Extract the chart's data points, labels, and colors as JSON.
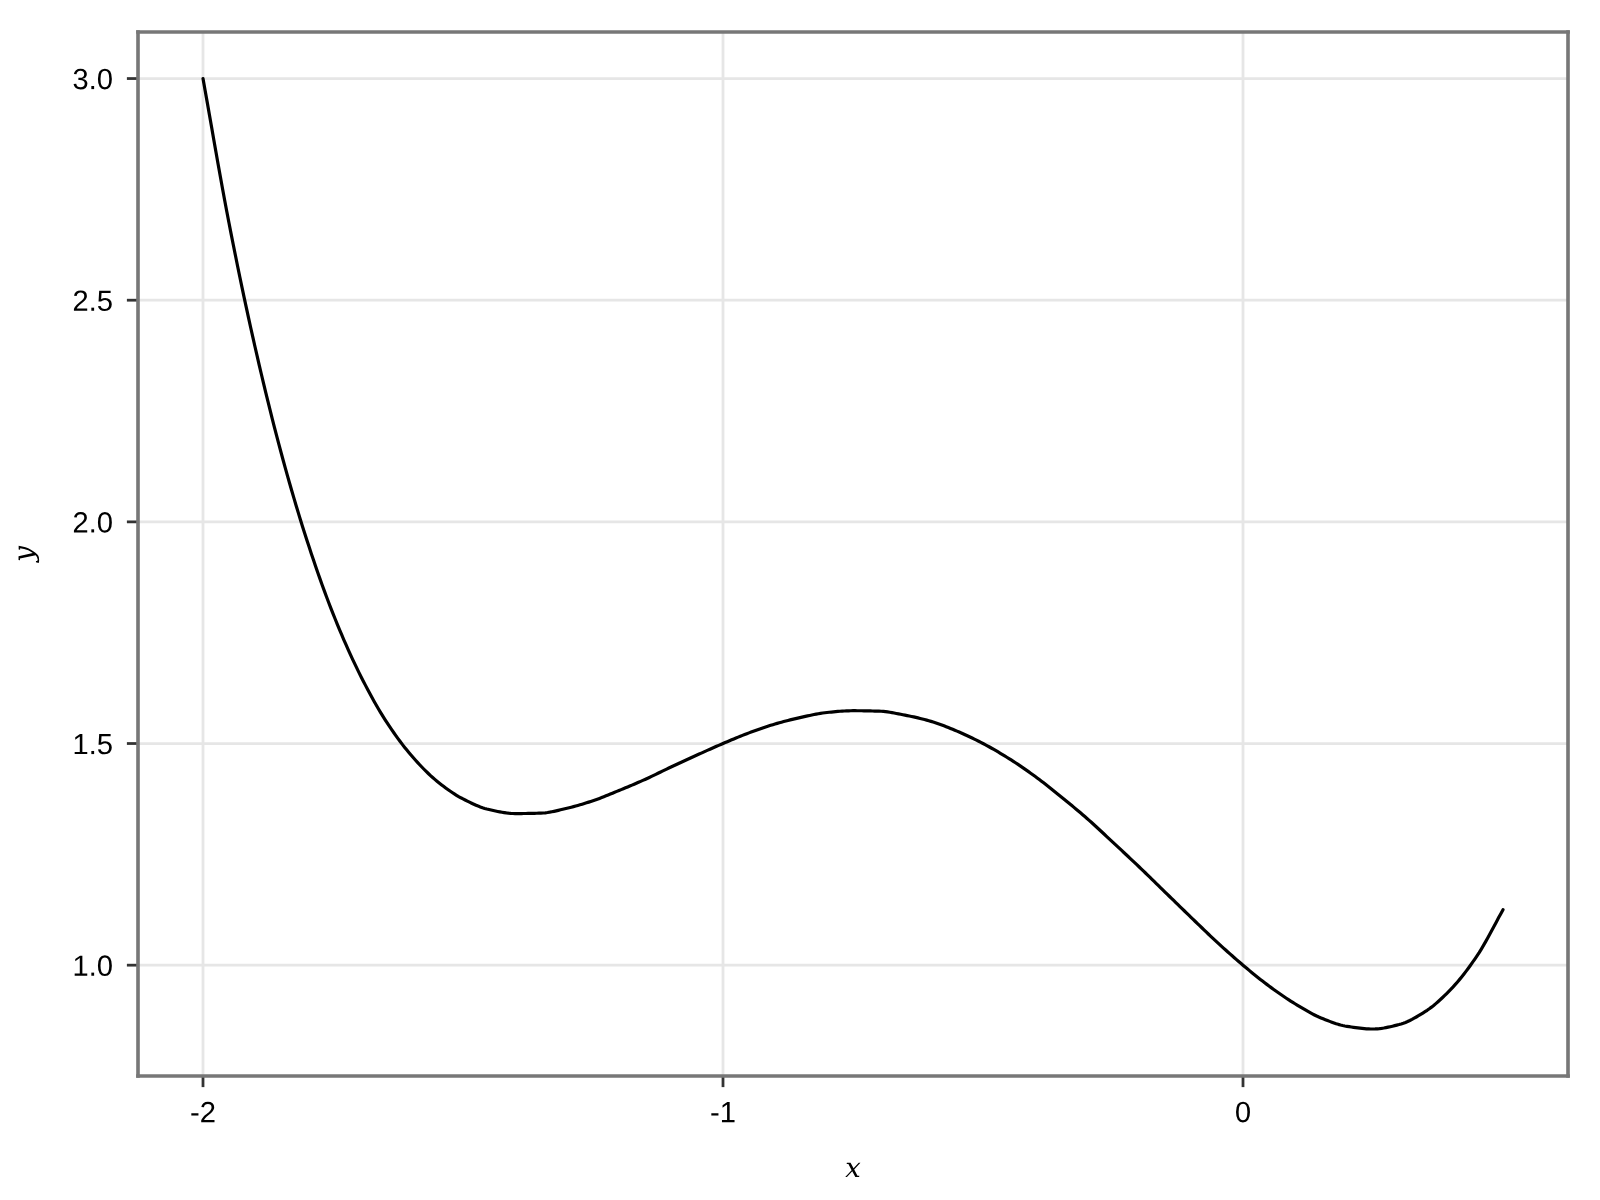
{
  "chart_data": {
    "type": "line",
    "xlabel": "x",
    "ylabel": "y",
    "x": [
      -2,
      -1.95,
      -1.9,
      -1.85,
      -1.8,
      -1.75,
      -1.7,
      -1.65,
      -1.6,
      -1.55,
      -1.5,
      -1.45,
      -1.4,
      -1.35,
      -1.3,
      -1.25,
      -1.2,
      -1.15,
      -1.1,
      -1.05,
      -1,
      -0.95,
      -0.9,
      -0.85,
      -0.8,
      -0.75,
      -0.7,
      -0.65,
      -0.6,
      -0.55,
      -0.5,
      -0.45,
      -0.4,
      -0.35,
      -0.3,
      -0.25,
      -0.2,
      -0.15,
      -0.1,
      -0.05,
      0,
      0.05,
      0.1,
      0.15,
      0.2,
      0.25,
      0.3,
      0.35,
      0.4,
      0.45,
      0.5
    ],
    "series": [
      {
        "color": "#000000",
        "values": [
          3.0,
          2.674,
          2.395,
          2.157,
          1.958,
          1.793,
          1.66,
          1.554,
          1.474,
          1.415,
          1.375,
          1.351,
          1.342,
          1.343,
          1.354,
          1.371,
          1.394,
          1.419,
          1.447,
          1.474,
          1.5,
          1.524,
          1.544,
          1.559,
          1.57,
          1.574,
          1.573,
          1.564,
          1.55,
          1.528,
          1.5,
          1.466,
          1.426,
          1.38,
          1.331,
          1.277,
          1.222,
          1.165,
          1.108,
          1.052,
          1.0,
          0.953,
          0.913,
          0.881,
          0.862,
          0.856,
          0.866,
          0.895,
          0.946,
          1.021,
          1.125
        ]
      }
    ],
    "xlim": [
      -2.125,
      0.625
    ],
    "xticks": [
      {
        "value": -2,
        "label": "-2"
      },
      {
        "value": -1,
        "label": "-1"
      },
      0
    ],
    "ylim": [
      0.75,
      3.105
    ],
    "yticks": [
      {
        "value": 1,
        "label": "1.0"
      },
      1.5,
      {
        "value": 2,
        "label": "2.0"
      },
      2.5,
      {
        "value": 3,
        "label": "3.0"
      }
    ],
    "grid": true,
    "marker": "none",
    "line_style": "solid"
  }
}
